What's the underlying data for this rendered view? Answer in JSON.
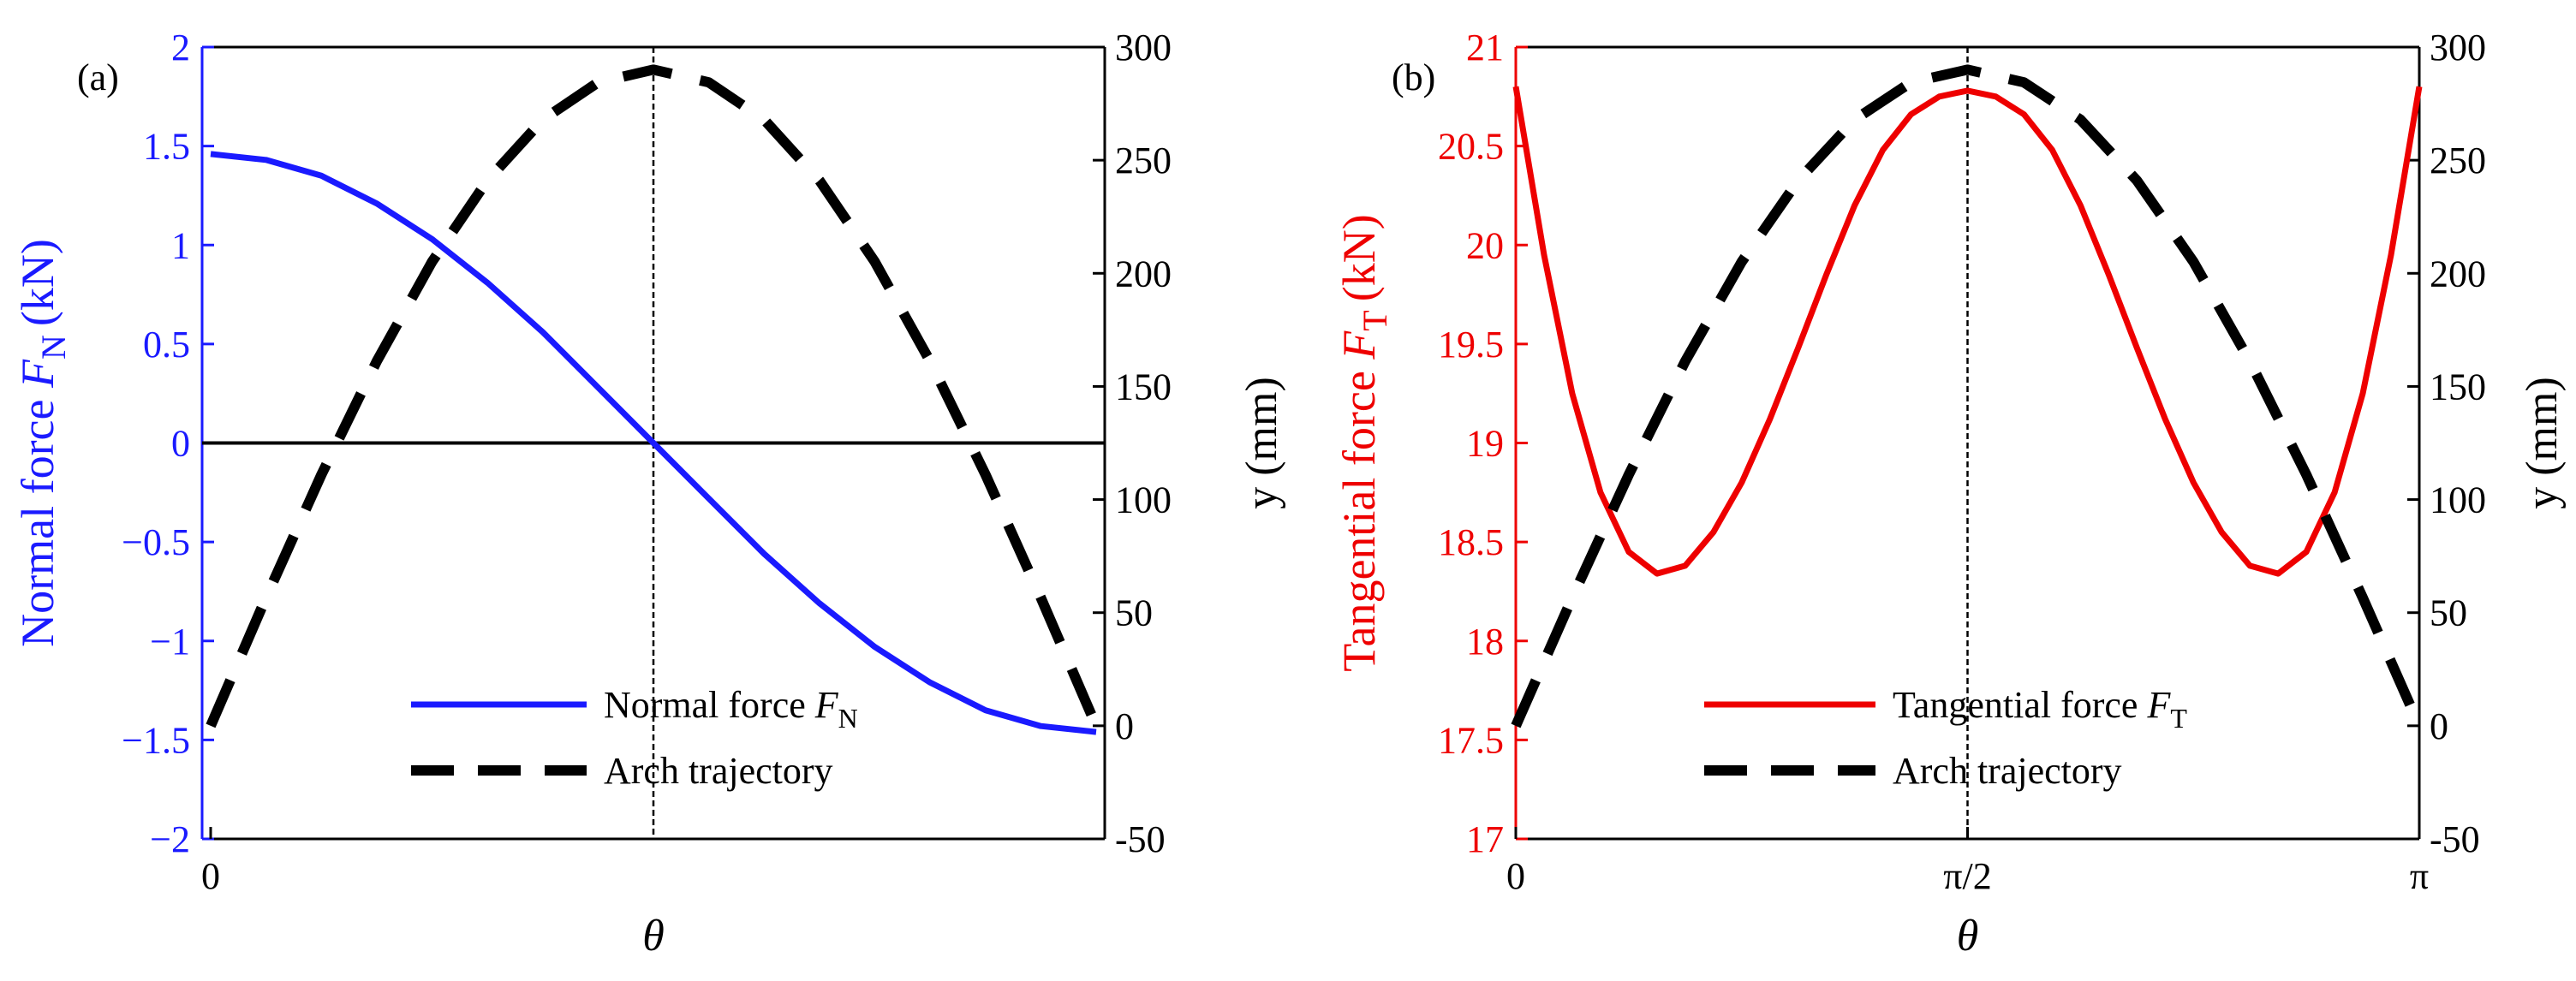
{
  "chart_data": [
    {
      "type": "line",
      "panel_label": "(a)",
      "xlabel": "θ",
      "x_domain": [
        0,
        3.14159
      ],
      "x_ticks": [
        {
          "value": 0,
          "label": "0"
        }
      ],
      "left_axis": {
        "label": "Normal force",
        "symbol": "F",
        "subscript": "N",
        "unit": "(kN)",
        "ylim": [
          -2,
          2
        ],
        "ticks": [
          -2,
          -1.5,
          -1,
          -0.5,
          0,
          0.5,
          1,
          1.5,
          2
        ],
        "tick_labels": [
          "−2",
          "−1.5",
          "−1",
          "−0.5",
          "0",
          "0.5",
          "1",
          "1.5",
          "2"
        ],
        "color": "#1a1aff"
      },
      "right_axis": {
        "label": "y (mm)",
        "ylim": [
          -50,
          300
        ],
        "ticks": [
          -50,
          0,
          50,
          100,
          150,
          200,
          250,
          300
        ],
        "tick_labels": [
          "-50",
          "0",
          "50",
          "100",
          "150",
          "200",
          "250",
          "300"
        ],
        "color": "#000000"
      },
      "series": [
        {
          "name": "Normal force",
          "legend_symbol": "F",
          "legend_subscript": "N",
          "axis": "left",
          "style": "solid",
          "color": "#1a1aff",
          "x": [
            0,
            0.1963,
            0.3927,
            0.589,
            0.7854,
            0.9817,
            1.1781,
            1.3744,
            1.5708,
            1.7671,
            1.9635,
            2.1598,
            2.3562,
            2.5525,
            2.7489,
            2.9452,
            3.1416
          ],
          "y": [
            1.46,
            1.43,
            1.35,
            1.21,
            1.03,
            0.81,
            0.56,
            0.28,
            0,
            -0.28,
            -0.56,
            -0.81,
            -1.03,
            -1.21,
            -1.35,
            -1.43,
            -1.46
          ]
        },
        {
          "name": "Arch trajectory",
          "axis": "right",
          "style": "dashed",
          "color": "#000000",
          "x": [
            0,
            0.1963,
            0.3927,
            0.589,
            0.7854,
            0.9817,
            1.1781,
            1.3744,
            1.5708,
            1.7671,
            1.9635,
            2.1598,
            2.3562,
            2.5525,
            2.7489,
            2.9452,
            3.1416
          ],
          "y": [
            0,
            56.6,
            111,
            161.1,
            205.1,
            241,
            267.9,
            284.4,
            290,
            284.4,
            267.9,
            241,
            205.1,
            161.1,
            111,
            56.6,
            0
          ]
        }
      ],
      "reference_lines": {
        "horizontal_left_value": 0,
        "vertical_x": 1.5708
      },
      "legend_position": "bottom-center"
    },
    {
      "type": "line",
      "panel_label": "(b)",
      "xlabel": "θ",
      "x_domain": [
        0,
        3.14159
      ],
      "x_ticks": [
        {
          "value": 0,
          "label": "0"
        },
        {
          "value": 1.5708,
          "label": "π/2"
        },
        {
          "value": 3.14159,
          "label": "π"
        }
      ],
      "left_axis": {
        "label": "Tangential force",
        "symbol": "F",
        "subscript": "T",
        "unit": "(kN)",
        "ylim": [
          17,
          21
        ],
        "ticks": [
          17,
          17.5,
          18,
          18.5,
          19,
          19.5,
          20,
          20.5,
          21
        ],
        "tick_labels": [
          "17",
          "17.5",
          "18",
          "18.5",
          "19",
          "19.5",
          "20",
          "20.5",
          "21"
        ],
        "color": "#ee0000"
      },
      "right_axis": {
        "label": "y (mm)",
        "ylim": [
          -50,
          300
        ],
        "ticks": [
          -50,
          0,
          50,
          100,
          150,
          200,
          250,
          300
        ],
        "tick_labels": [
          "-50",
          "0",
          "50",
          "100",
          "150",
          "200",
          "250",
          "300"
        ],
        "color": "#000000"
      },
      "series": [
        {
          "name": "Tangential force",
          "legend_symbol": "F",
          "legend_subscript": "T",
          "axis": "left",
          "style": "solid",
          "color": "#ee0000",
          "x": [
            0,
            0.0982,
            0.1963,
            0.2945,
            0.3927,
            0.4909,
            0.589,
            0.6872,
            0.7854,
            0.8836,
            0.9817,
            1.0799,
            1.1781,
            1.2763,
            1.3744,
            1.4726,
            1.5708,
            1.669,
            1.7671,
            1.8653,
            1.9635,
            2.0617,
            2.1598,
            2.258,
            2.3562,
            2.4544,
            2.5525,
            2.6507,
            2.7489,
            2.8471,
            2.9452,
            3.0434,
            3.1416
          ],
          "y": [
            20.8,
            19.95,
            19.25,
            18.75,
            18.45,
            18.34,
            18.38,
            18.55,
            18.8,
            19.12,
            19.48,
            19.85,
            20.2,
            20.48,
            20.66,
            20.75,
            20.78,
            20.75,
            20.66,
            20.48,
            20.2,
            19.85,
            19.48,
            19.12,
            18.8,
            18.55,
            18.38,
            18.34,
            18.45,
            18.75,
            19.25,
            19.95,
            20.8
          ]
        },
        {
          "name": "Arch trajectory",
          "axis": "right",
          "style": "dashed",
          "color": "#000000",
          "x": [
            0,
            0.1963,
            0.3927,
            0.589,
            0.7854,
            0.9817,
            1.1781,
            1.3744,
            1.5708,
            1.7671,
            1.9635,
            2.1598,
            2.3562,
            2.5525,
            2.7489,
            2.9452,
            3.1416
          ],
          "y": [
            0,
            56.6,
            111,
            161.1,
            205.1,
            241,
            267.9,
            284.4,
            290,
            284.4,
            267.9,
            241,
            205.1,
            161.1,
            111,
            56.6,
            0
          ]
        }
      ],
      "reference_lines": {
        "vertical_x": 1.5708
      },
      "legend_position": "bottom-center"
    }
  ]
}
